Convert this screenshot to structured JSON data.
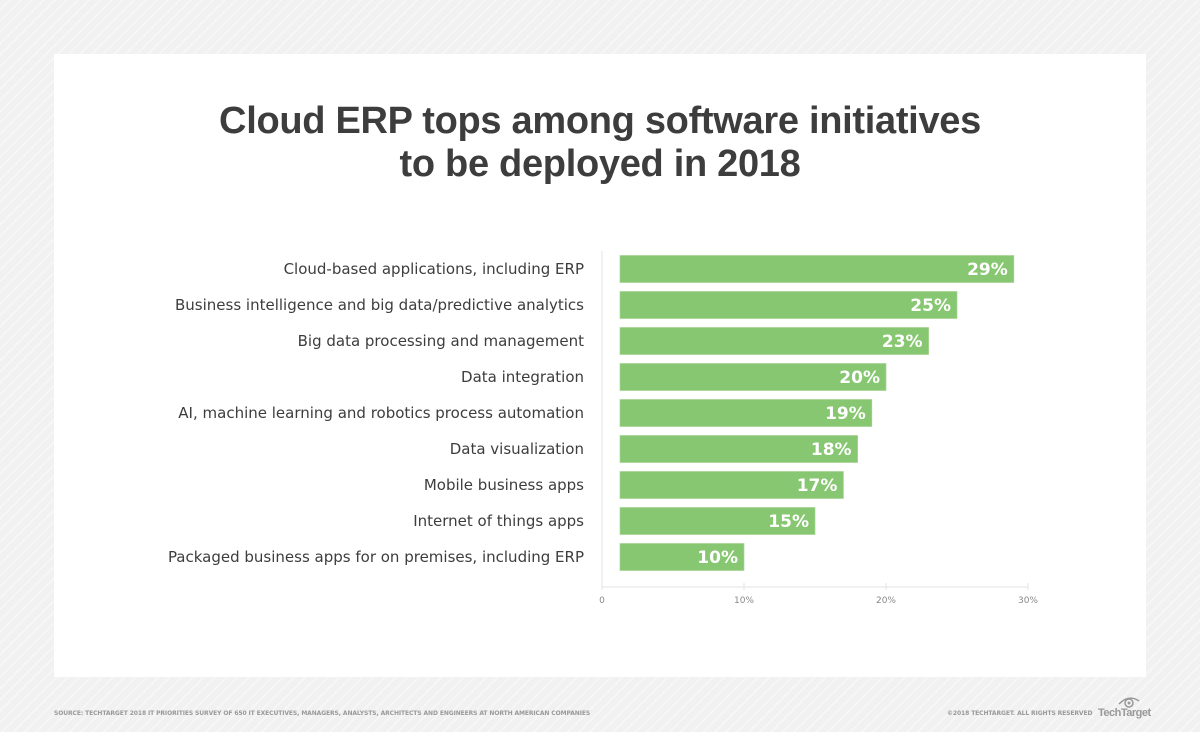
{
  "chart_data": {
    "type": "bar",
    "orientation": "horizontal",
    "title": "Cloud ERP tops among software initiatives to be deployed in 2018",
    "title_lines": [
      "Cloud ERP tops among software initiatives",
      "to be deployed in 2018"
    ],
    "categories": [
      "Cloud-based applications, including ERP",
      "Business intelligence and big data/predictive analytics",
      "Big data processing and management",
      "Data integration",
      "AI, machine learning and robotics process automation",
      "Data visualization",
      "Mobile business apps",
      "Internet of things apps",
      "Packaged business apps for on premises, including ERP"
    ],
    "values": [
      29,
      25,
      23,
      20,
      19,
      18,
      17,
      15,
      10
    ],
    "data_labels": [
      "29%",
      "25%",
      "23%",
      "20%",
      "19%",
      "18%",
      "17%",
      "15%",
      "10%"
    ],
    "xlim": [
      0,
      30
    ],
    "x_ticks": [
      0,
      10,
      20,
      30
    ],
    "x_tick_labels": [
      "0",
      "10%",
      "20%",
      "30%"
    ],
    "xlabel": "",
    "ylabel": "",
    "grid": false,
    "bar_color": "#88c771"
  },
  "footer": {
    "source": "SOURCE: TECHTARGET 2018 IT PRIORITIES SURVEY OF 650 IT EXECUTIVES, MANAGERS, ANALYSTS, ARCHITECTS AND ENGINEERS AT NORTH AMERICAN COMPANIES",
    "copyright": "©2018 TECHTARGET. ALL RIGHTS RESERVED",
    "logo": "TechTarget"
  }
}
